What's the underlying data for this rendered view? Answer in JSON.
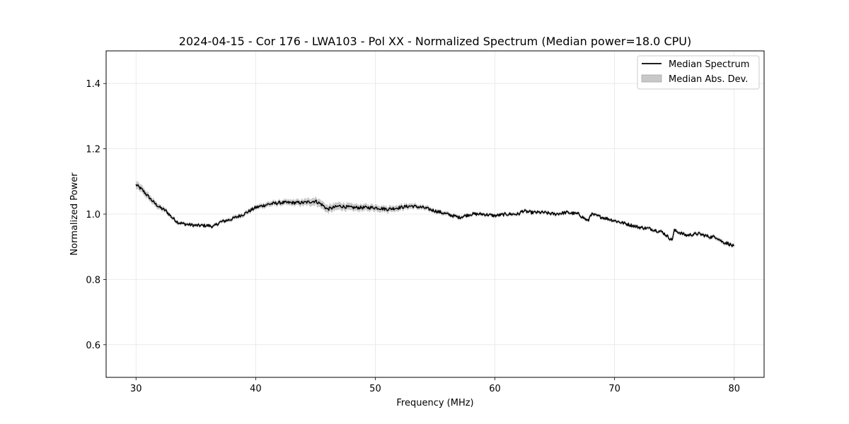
{
  "chart_data": {
    "type": "line",
    "title": "2024-04-15 - Cor 176 - LWA103 - Pol XX - Normalized Spectrum (Median power=18.0 CPU)",
    "xlabel": "Frequency (MHz)",
    "ylabel": "Normalized Power",
    "xlim": [
      27.5,
      82.5
    ],
    "ylim": [
      0.5,
      1.5
    ],
    "xticks": [
      30,
      40,
      50,
      60,
      70,
      80
    ],
    "yticks": [
      0.6,
      0.8,
      1.0,
      1.2,
      1.4
    ],
    "xtick_labels": [
      "30",
      "40",
      "50",
      "60",
      "70",
      "80"
    ],
    "ytick_labels": [
      "0.6",
      "0.8",
      "1.0",
      "1.2",
      "1.4"
    ],
    "grid": true,
    "legend_position": "top-right",
    "legend": [
      "Median Spectrum",
      "Median Abs. Dev."
    ],
    "series": [
      {
        "name": "Median Spectrum",
        "color": "#000000",
        "x": [
          30,
          30.5,
          31,
          31.5,
          32,
          32.5,
          33,
          33.5,
          34,
          35,
          36,
          36.5,
          37,
          38,
          39,
          40,
          41,
          42,
          43,
          44,
          45,
          45.5,
          46,
          47,
          48,
          49,
          50,
          51,
          52,
          53,
          54,
          55,
          56,
          57,
          58,
          59,
          60,
          61,
          62,
          62.3,
          63,
          64,
          65,
          66,
          67,
          67.8,
          68,
          69,
          70,
          71,
          72,
          73,
          74,
          74.8,
          75,
          76,
          77,
          78,
          78.5,
          79,
          79.5,
          80
        ],
        "y": [
          1.09,
          1.075,
          1.055,
          1.035,
          1.02,
          1.01,
          0.99,
          0.975,
          0.97,
          0.965,
          0.965,
          0.962,
          0.975,
          0.985,
          1.0,
          1.02,
          1.03,
          1.035,
          1.035,
          1.035,
          1.04,
          1.03,
          1.015,
          1.025,
          1.02,
          1.02,
          1.02,
          1.015,
          1.02,
          1.025,
          1.02,
          1.01,
          1.0,
          0.99,
          1.0,
          1.0,
          0.995,
          1.0,
          1.0,
          1.01,
          1.005,
          1.005,
          1.0,
          1.005,
          1.0,
          0.978,
          1.0,
          0.99,
          0.98,
          0.97,
          0.96,
          0.955,
          0.945,
          0.92,
          0.95,
          0.935,
          0.94,
          0.93,
          0.93,
          0.915,
          0.91,
          0.9
        ]
      },
      {
        "name": "Median Abs. Dev.",
        "color": "#bfbfbf",
        "x": [
          30,
          31,
          32,
          33,
          34,
          36,
          38,
          40,
          42,
          44,
          45,
          46,
          48,
          50,
          52,
          54,
          56,
          58,
          60,
          62,
          64,
          66,
          68,
          70,
          72,
          74,
          76,
          78,
          80
        ],
        "spread": [
          0.012,
          0.01,
          0.008,
          0.006,
          0.005,
          0.005,
          0.006,
          0.007,
          0.008,
          0.01,
          0.012,
          0.012,
          0.011,
          0.01,
          0.009,
          0.007,
          0.006,
          0.005,
          0.005,
          0.005,
          0.005,
          0.005,
          0.005,
          0.005,
          0.005,
          0.005,
          0.005,
          0.006,
          0.006
        ]
      }
    ]
  }
}
